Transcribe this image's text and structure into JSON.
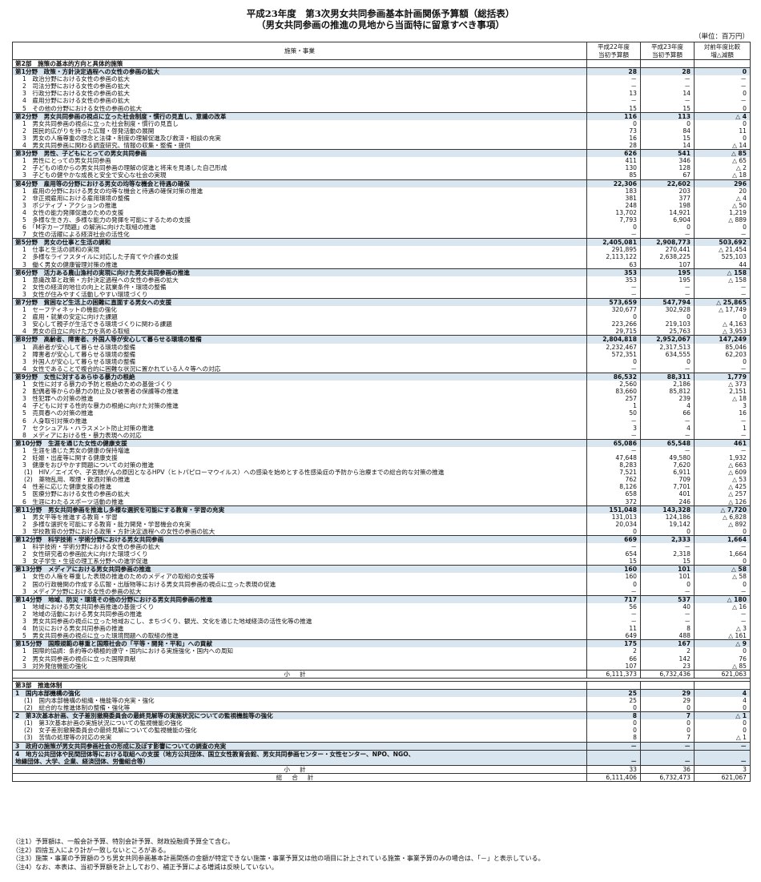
{
  "title_line1": "平成23年度　第3次男女共同参画基本計画関係予算額（総括表）",
  "title_line2": "（男女共同参画の推進の見地から当面特に留意すべき事項）",
  "unit": "（単位：百万円）",
  "columns": [
    "施策・事業",
    "平成22年度\n当初予算額",
    "平成23年度\n当初予算額",
    "対前年度比較\n増△減額"
  ],
  "rows": [
    {
      "t": "part",
      "label": "第2部　施策の基本的方向と具体的施策"
    },
    {
      "t": "hdr",
      "label": "第1分野　政策・方針決定過程への女性の参画の拡大",
      "v": [
        "28",
        "28",
        "0"
      ]
    },
    {
      "t": "item",
      "label": "1　政治分野における女性の参画の拡大",
      "v": [
        "－",
        "－",
        "－"
      ]
    },
    {
      "t": "item",
      "label": "2　司法分野における女性の参画の拡大",
      "v": [
        "－",
        "－",
        "－"
      ]
    },
    {
      "t": "item",
      "label": "3　行政分野における女性の参画の拡大",
      "v": [
        "13",
        "14",
        "0"
      ]
    },
    {
      "t": "item",
      "label": "4　雇用分野における女性の参画の拡大",
      "v": [
        "－",
        "－",
        "－"
      ]
    },
    {
      "t": "item",
      "label": "5　その他の分野における女性の参画の拡大",
      "v": [
        "15",
        "15",
        "0"
      ]
    },
    {
      "t": "hdr",
      "label": "第2分野　男女共同参画の視点に立った社会制度・慣行の見直し、意識の改革",
      "v": [
        "116",
        "113",
        "△ 4"
      ]
    },
    {
      "t": "item",
      "label": "1　男女共同参画の視点に立った社会制度・慣行の見直し",
      "v": [
        "0",
        "0",
        "0"
      ]
    },
    {
      "t": "item",
      "label": "2　国民的広がりを持った広報・啓発活動の展開",
      "v": [
        "73",
        "84",
        "11"
      ]
    },
    {
      "t": "item",
      "label": "3　男女の人権尊重の理念と法律・制度の理解促進及び救済・相談の充実",
      "v": [
        "16",
        "15",
        "0"
      ]
    },
    {
      "t": "item",
      "label": "4　男女共同参画に関わる調査研究、情報の収集・整備・提供",
      "v": [
        "28",
        "14",
        "△ 14"
      ]
    },
    {
      "t": "hdr",
      "label": "第3分野　男性、子どもにとっての男女共同参画",
      "v": [
        "626",
        "541",
        "△ 85"
      ]
    },
    {
      "t": "item",
      "label": "1　男性にとっての男女共同参画",
      "v": [
        "411",
        "346",
        "△ 65"
      ]
    },
    {
      "t": "item",
      "label": "2　子どもの頃からの男女共同参画の理解の促進と将来を見通した自己形成",
      "v": [
        "130",
        "128",
        "△ 2"
      ]
    },
    {
      "t": "item",
      "label": "3　子どもの健やかな成長と安全で安心な社会の実現",
      "v": [
        "85",
        "67",
        "△ 18"
      ]
    },
    {
      "t": "hdr",
      "label": "第4分野　雇用等の分野における男女の均等な機会と待遇の確保",
      "v": [
        "22,306",
        "22,602",
        "296"
      ]
    },
    {
      "t": "item",
      "label": "1　雇用の分野における男女の均等な機会と待遇の確保対策の推進",
      "v": [
        "183",
        "203",
        "20"
      ]
    },
    {
      "t": "item",
      "label": "2　非正規雇用における雇用環境の整備",
      "v": [
        "381",
        "377",
        "△ 4"
      ]
    },
    {
      "t": "item",
      "label": "3　ポジティブ・アクションの推進",
      "v": [
        "248",
        "198",
        "△ 50"
      ]
    },
    {
      "t": "item",
      "label": "4　女性の能力発揮促進のための支援",
      "v": [
        "13,702",
        "14,921",
        "1,219"
      ]
    },
    {
      "t": "item",
      "label": "5　多様な生き方、多様な能力の発揮を可能にするための支援",
      "v": [
        "7,793",
        "6,904",
        "△ 889"
      ]
    },
    {
      "t": "item",
      "label": "6　「M字カーブ問題」の解消に向けた取組の推進",
      "v": [
        "0",
        "0",
        "0"
      ]
    },
    {
      "t": "item",
      "label": "7　女性の活躍による経済社会の活性化",
      "v": [
        "－",
        "－",
        "－"
      ]
    },
    {
      "t": "hdr",
      "label": "第5分野　男女の仕事と生活の調和",
      "v": [
        "2,405,081",
        "2,908,773",
        "503,692"
      ]
    },
    {
      "t": "item",
      "label": "1　仕事と生活の調和の実現",
      "v": [
        "291,895",
        "270,441",
        "△ 21,454"
      ]
    },
    {
      "t": "item",
      "label": "2　多様なライフスタイルに対応した子育てや介護の支援",
      "v": [
        "2,113,122",
        "2,638,225",
        "525,103"
      ]
    },
    {
      "t": "item",
      "label": "3　働く男女の健康管理対策の推進",
      "v": [
        "63",
        "107",
        "44"
      ]
    },
    {
      "t": "hdr",
      "label": "第6分野　活力ある農山漁村の実現に向けた男女共同参画の推進",
      "v": [
        "353",
        "195",
        "△ 158"
      ]
    },
    {
      "t": "item",
      "label": "1　意識改革と政策・方針決定過程への女性の参画の拡大",
      "v": [
        "353",
        "195",
        "△ 158"
      ]
    },
    {
      "t": "item",
      "label": "2　女性の経済的地位の向上と就業条件・環境の整備",
      "v": [
        "－",
        "－",
        "－"
      ]
    },
    {
      "t": "item",
      "label": "3　女性が住みやすく活動しやすい環境づくり",
      "v": [
        "－",
        "－",
        "－"
      ]
    },
    {
      "t": "hdr",
      "label": "第7分野　貧困など生活上の困難に直面する男女への支援",
      "v": [
        "573,659",
        "547,794",
        "△ 25,865"
      ]
    },
    {
      "t": "item",
      "label": "1　セーフティネットの機能の強化",
      "v": [
        "320,677",
        "302,928",
        "△ 17,749"
      ]
    },
    {
      "t": "item",
      "label": "2　雇用・就業の安定に向けた課題",
      "v": [
        "0",
        "0",
        "0"
      ]
    },
    {
      "t": "item",
      "label": "3　安心して親子が生活できる環境づくりに関わる課題",
      "v": [
        "223,266",
        "219,103",
        "△ 4,163"
      ]
    },
    {
      "t": "item",
      "label": "4　男女の自立に向けた力を高める取組",
      "v": [
        "29,715",
        "25,763",
        "△ 3,953"
      ]
    },
    {
      "t": "hdr",
      "label": "第8分野　高齢者、障害者、外国人等が安心して暮らせる環境の整備",
      "v": [
        "2,804,818",
        "2,952,067",
        "147,249"
      ]
    },
    {
      "t": "item",
      "label": "1　高齢者が安心して暮らせる環境の整備",
      "v": [
        "2,232,467",
        "2,317,513",
        "85,046"
      ]
    },
    {
      "t": "item",
      "label": "2　障害者が安心して暮らせる環境の整備",
      "v": [
        "572,351",
        "634,555",
        "62,203"
      ]
    },
    {
      "t": "item",
      "label": "3　外国人が安心して暮らせる環境の整備",
      "v": [
        "0",
        "0",
        "0"
      ]
    },
    {
      "t": "item",
      "label": "4　女性であることで複合的に困難な状況に置かれている人々等への対応",
      "v": [
        "－",
        "－",
        "－"
      ]
    },
    {
      "t": "hdr",
      "label": "第9分野　女性に対するあらゆる暴力の根絶",
      "v": [
        "86,532",
        "88,311",
        "1,779"
      ]
    },
    {
      "t": "item",
      "label": "1　女性に対する暴力の予防と根絶のための基盤づくり",
      "v": [
        "2,560",
        "2,186",
        "△ 373"
      ]
    },
    {
      "t": "item",
      "label": "2　配偶者等からの暴力の防止及び被害者の保護等の推進",
      "v": [
        "83,660",
        "85,812",
        "2,151"
      ]
    },
    {
      "t": "item",
      "label": "3　性犯罪への対策の推進",
      "v": [
        "257",
        "239",
        "△ 18"
      ]
    },
    {
      "t": "item",
      "label": "4　子どもに対する性的な暴力の根絶に向けた対策の推進",
      "v": [
        "1",
        "4",
        "3"
      ]
    },
    {
      "t": "item",
      "label": "5　売買春への対策の推進",
      "v": [
        "50",
        "66",
        "16"
      ]
    },
    {
      "t": "item",
      "label": "6　人身取引対策の推進",
      "v": [
        "－",
        "－",
        "－"
      ]
    },
    {
      "t": "item",
      "label": "7　セクシュアル・ハラスメント防止対策の推進",
      "v": [
        "3",
        "4",
        "1"
      ]
    },
    {
      "t": "item",
      "label": "8　メディアにおける性・暴力表現への対応",
      "v": [
        "－",
        "－",
        "－"
      ]
    },
    {
      "t": "hdr",
      "label": "第10分野　生涯を通じた女性の健康支援",
      "v": [
        "65,086",
        "65,548",
        "461"
      ]
    },
    {
      "t": "item",
      "label": "1　生涯を通じた男女の健康の保持増進",
      "v": [
        "－",
        "－",
        "－"
      ]
    },
    {
      "t": "item",
      "label": "2　妊娠・出産等に関する健康支援",
      "v": [
        "47,648",
        "49,580",
        "1,932"
      ]
    },
    {
      "t": "item",
      "label": "3　健康をおびやかす問題についての対策の推進",
      "v": [
        "8,283",
        "7,620",
        "△ 663"
      ]
    },
    {
      "t": "sub",
      "label": "(1)　HIV／エイズや、子宮頸がんの原因となるHPV（ヒトパピローマウイルス）への感染を始めとする性感染症の予防から治療までの総合的な対策の推進",
      "v": [
        "7,521",
        "6,911",
        "△ 609"
      ]
    },
    {
      "t": "sub",
      "label": "(2)　薬物乱用、喫煙・飲酒対策の推進",
      "v": [
        "762",
        "709",
        "△ 53"
      ]
    },
    {
      "t": "item",
      "label": "4　性差に応じた健康支援の推進",
      "v": [
        "8,126",
        "7,701",
        "△ 425"
      ]
    },
    {
      "t": "item",
      "label": "5　医療分野における女性の参画の拡大",
      "v": [
        "658",
        "401",
        "△ 257"
      ]
    },
    {
      "t": "item",
      "label": "6　生涯にわたるスポーツ活動の推進",
      "v": [
        "372",
        "246",
        "△ 126"
      ]
    },
    {
      "t": "hdr",
      "label": "第11分野　男女共同参画を推進し多様な選択を可能にする教育・学習の充実",
      "v": [
        "151,048",
        "143,328",
        "△ 7,720"
      ]
    },
    {
      "t": "item",
      "label": "1　男女平等を推進する教育・学習",
      "v": [
        "131,013",
        "124,186",
        "△ 6,828"
      ]
    },
    {
      "t": "item",
      "label": "2　多様な選択を可能にする教育・能力開発・学習機会の充実",
      "v": [
        "20,034",
        "19,142",
        "△ 892"
      ]
    },
    {
      "t": "item",
      "label": "3　学校教育の分野における政策・方針決定過程への女性の参画の拡大",
      "v": [
        "0",
        "0",
        "0"
      ]
    },
    {
      "t": "hdr",
      "label": "第12分野　科学技術・学術分野における男女共同参画",
      "v": [
        "669",
        "2,333",
        "1,664"
      ]
    },
    {
      "t": "item",
      "label": "1　科学技術・学術分野における女性の参画の拡大",
      "v": [
        "－",
        "－",
        "－"
      ]
    },
    {
      "t": "item",
      "label": "2　女性研究者の参画拡大に向けた環境づくり",
      "v": [
        "654",
        "2,318",
        "1,664"
      ]
    },
    {
      "t": "item",
      "label": "3　女子学生・生徒の理工系分野への進学促進",
      "v": [
        "15",
        "15",
        "0"
      ]
    },
    {
      "t": "hdr",
      "label": "第13分野　メディアにおける男女共同参画の推進",
      "v": [
        "160",
        "101",
        "△ 58"
      ]
    },
    {
      "t": "item",
      "label": "1　女性の人権を尊重した表現の推進のためのメディアの取組の支援等",
      "v": [
        "160",
        "101",
        "△ 58"
      ]
    },
    {
      "t": "item",
      "label": "2　国の行政機関の作成する広報・出版物等における男女共同参画の視点に立った表現の促進",
      "v": [
        "0",
        "0",
        "0"
      ]
    },
    {
      "t": "item",
      "label": "3　メディア分野における女性の参画の拡大",
      "v": [
        "－",
        "－",
        "－"
      ]
    },
    {
      "t": "hdr",
      "label": "第14分野　地域、防災・環境その他の分野における男女共同参画の推進",
      "v": [
        "717",
        "537",
        "△ 180"
      ]
    },
    {
      "t": "item",
      "label": "1　地域における男女共同参画推進の基盤づくり",
      "v": [
        "56",
        "40",
        "△ 16"
      ]
    },
    {
      "t": "item",
      "label": "2　地域の活動における男女共同参画の推進",
      "v": [
        "－",
        "－",
        "－"
      ]
    },
    {
      "t": "item",
      "label": "3　男女共同参画の視点に立った地域おこし、まちづくり、観光、文化を通じた地域経済の活性化等の推進",
      "v": [
        "－",
        "－",
        "－"
      ]
    },
    {
      "t": "item",
      "label": "4　防災における男女共同参画の推進",
      "v": [
        "11",
        "8",
        "△ 3"
      ]
    },
    {
      "t": "item",
      "label": "5　男女共同参画の視点に立った環境問題への取組の推進",
      "v": [
        "649",
        "488",
        "△ 161"
      ]
    },
    {
      "t": "hdr",
      "label": "第15分野　国際規範の尊重と国際社会の「平等・開発・平和」への貢献",
      "v": [
        "175",
        "167",
        "△ 9"
      ]
    },
    {
      "t": "item",
      "label": "1　国際的協調：条約等の積極的遵守・国内における実施強化・国内への周知",
      "v": [
        "2",
        "2",
        "0"
      ]
    },
    {
      "t": "item",
      "label": "2　男女共同参画の視点に立った国際貢献",
      "v": [
        "66",
        "142",
        "76"
      ]
    },
    {
      "t": "item",
      "label": "3　対外発信機能の強化",
      "v": [
        "107",
        "23",
        "△ 85"
      ]
    },
    {
      "t": "total",
      "label": "小計",
      "v": [
        "6,111,373",
        "6,732,436",
        "621,063"
      ]
    },
    {
      "t": "spacer"
    },
    {
      "t": "part",
      "label": "第3部　推進体制"
    },
    {
      "t": "hdr",
      "label": "1　国内本部機構の強化",
      "v": [
        "25",
        "29",
        "4"
      ]
    },
    {
      "t": "sub",
      "label": "(1)　国内本部機構の組織・機能等の充実・強化",
      "v": [
        "25",
        "29",
        "4"
      ]
    },
    {
      "t": "sub",
      "label": "(2)　総合的な推進体制の整備・強化等",
      "v": [
        "0",
        "0",
        "0"
      ]
    },
    {
      "t": "hdr",
      "label": "2　第3次基本計画、女子差別撤廃委員会の最終見解等の実施状況についての監視機能等の強化",
      "v": [
        "8",
        "7",
        "△ 1"
      ]
    },
    {
      "t": "sub",
      "label": "(1)　第3次基本計画の実施状況についての監視機能の強化",
      "v": [
        "0",
        "0",
        "0"
      ]
    },
    {
      "t": "sub",
      "label": "(2)　女子差別撤廃委員会の最終見解についての監視機能の強化",
      "v": [
        "0",
        "0",
        "0"
      ]
    },
    {
      "t": "sub",
      "label": "(3)　苦情の処理等の対応の充実",
      "v": [
        "8",
        "7",
        "△ 1"
      ]
    },
    {
      "t": "hdr",
      "label": "3　政府の施策が男女共同参画社会の形成に及ぼす影響についての調査の充実",
      "v": [
        "－",
        "－",
        "－"
      ]
    },
    {
      "t": "hdr",
      "label": "4　地方公共団体や民間団体等における取組への支援（地方公共団体、国立女性教育会館、男女共同参画センター・女性センター、NPO、NGO、",
      "label2": "地縁団体、大学、企業、経済団体、労働組合等）",
      "v": [
        "－",
        "－",
        "－"
      ]
    },
    {
      "t": "total",
      "label": "小計",
      "v": [
        "33",
        "36",
        "3"
      ]
    },
    {
      "t": "total",
      "label": "総合計",
      "v": [
        "6,111,406",
        "6,732,473",
        "621,067"
      ]
    }
  ],
  "notes": [
    "（注1）予算額は、一般会計予算、特別会計予算、財政投融資予算全て含む。",
    "（注2）四捨五入により計が一致しないところがある。",
    "（注3）施策・事業の予算額のうち男女共同参画基本計画関係の金額が特定できない施策・事業予算又は他の項目に計上されている施策・事業予算のみの場合は、「－」と表示している。",
    "（注4）なお、本表は、当初予算額を計上しており、補正予算による増減は反映していない。"
  ]
}
